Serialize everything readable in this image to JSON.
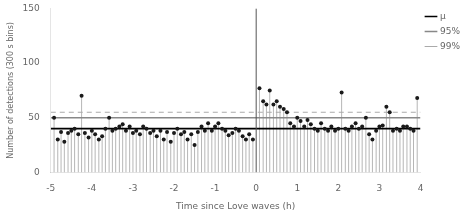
{
  "chart_data": {
    "type": "scatter",
    "xlabel": "Time since Love waves (h)",
    "ylabel": "Number of detections (300 s bins)",
    "xlim": [
      -5,
      4
    ],
    "ylim": [
      0,
      150
    ],
    "xticks": [
      -5,
      -4,
      -3,
      -2,
      -1,
      0,
      1,
      2,
      3,
      4
    ],
    "yticks": [
      0,
      50,
      100,
      150
    ],
    "grid": false,
    "legend": "upper right",
    "color": "#1a1a1a",
    "x": [
      -4.92,
      -4.83,
      -4.75,
      -4.67,
      -4.58,
      -4.5,
      -4.42,
      -4.33,
      -4.25,
      -4.17,
      -4.08,
      -4.0,
      -3.92,
      -3.83,
      -3.75,
      -3.67,
      -3.58,
      -3.5,
      -3.42,
      -3.33,
      -3.25,
      -3.17,
      -3.08,
      -3.0,
      -2.92,
      -2.83,
      -2.75,
      -2.67,
      -2.58,
      -2.5,
      -2.42,
      -2.33,
      -2.25,
      -2.17,
      -2.08,
      -2.0,
      -1.92,
      -1.83,
      -1.75,
      -1.67,
      -1.58,
      -1.5,
      -1.42,
      -1.33,
      -1.25,
      -1.17,
      -1.08,
      -1.0,
      -0.92,
      -0.83,
      -0.75,
      -0.67,
      -0.58,
      -0.5,
      -0.42,
      -0.33,
      -0.25,
      -0.17,
      -0.08,
      0.08,
      0.17,
      0.25,
      0.33,
      0.42,
      0.5,
      0.58,
      0.67,
      0.75,
      0.83,
      0.92,
      1.0,
      1.08,
      1.17,
      1.25,
      1.33,
      1.42,
      1.5,
      1.58,
      1.67,
      1.75,
      1.83,
      1.92,
      2.0,
      2.08,
      2.17,
      2.25,
      2.33,
      2.42,
      2.5,
      2.58,
      2.67,
      2.75,
      2.83,
      2.92,
      3.0,
      3.08,
      3.17,
      3.25,
      3.33,
      3.42,
      3.5,
      3.58,
      3.67,
      3.75,
      3.83,
      3.92
    ],
    "values": [
      50,
      30,
      37,
      28,
      36,
      38,
      40,
      35,
      70,
      36,
      32,
      38,
      35,
      30,
      33,
      40,
      50,
      38,
      40,
      42,
      44,
      38,
      42,
      36,
      38,
      35,
      42,
      40,
      36,
      38,
      33,
      38,
      30,
      37,
      28,
      36,
      40,
      35,
      37,
      30,
      35,
      25,
      37,
      42,
      38,
      45,
      38,
      42,
      45,
      40,
      38,
      34,
      36,
      40,
      38,
      33,
      30,
      35,
      30,
      77,
      65,
      62,
      75,
      62,
      65,
      60,
      58,
      55,
      45,
      42,
      50,
      47,
      42,
      48,
      44,
      40,
      38,
      45,
      40,
      38,
      42,
      38,
      40,
      73,
      40,
      38,
      42,
      45,
      40,
      42,
      50,
      35,
      30,
      38,
      42,
      43,
      60,
      55,
      38,
      40,
      38,
      42,
      42,
      40,
      38,
      68
    ],
    "hlines": [
      {
        "name": "μ",
        "value": 40,
        "color": "#000000",
        "line_style": "solid"
      },
      {
        "name": "95%",
        "value": 50,
        "color": "#888888",
        "line_style": "solid"
      },
      {
        "name": "99%",
        "value": 55,
        "color": "#aaaaaa",
        "line_style": "dashed"
      }
    ],
    "vlines": [
      {
        "value": 0,
        "color": "#555555"
      }
    ]
  }
}
